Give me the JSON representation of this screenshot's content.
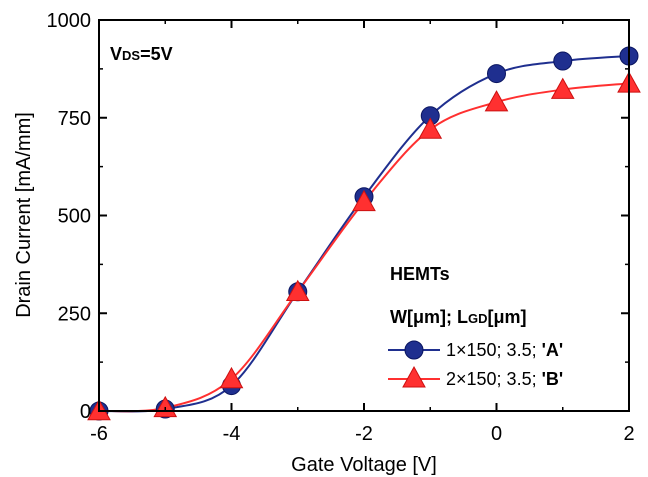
{
  "chart_data": {
    "type": "line",
    "x": [
      -6,
      -5,
      -4,
      -3,
      -2,
      -1,
      0,
      1,
      2
    ],
    "series": [
      {
        "name": "1×150; 3.5; 'A'",
        "name_parts": {
          "main": "1×150; 3.5; ",
          "bold": "'A'"
        },
        "values": [
          0,
          5,
          65,
          305,
          548,
          755,
          863,
          895,
          908
        ],
        "color": "#1f2f8f",
        "marker": "circle"
      },
      {
        "name": "2×150; 3.5; 'B'",
        "name_parts": {
          "main": "2×150; 3.5; ",
          "bold": "'B'"
        },
        "values": [
          0,
          8,
          82,
          305,
          535,
          720,
          790,
          822,
          838
        ],
        "color": "#ff3030",
        "marker": "triangle"
      }
    ],
    "xlabel": "Gate Voltage [V]",
    "ylabel": "Drain Current [mA/mm]",
    "xlim": [
      -6,
      2
    ],
    "ylim": [
      0,
      1000
    ],
    "xticks": [
      "-6",
      "-4",
      "-2",
      "0",
      "2"
    ],
    "yticks": [
      "0",
      "250",
      "500",
      "750",
      "1000"
    ],
    "grid": false,
    "legend_position": "bottom-right",
    "annotations": {
      "vds": {
        "main": "V",
        "sub": "DS",
        "rest": "=5V"
      },
      "device": "HEMTs",
      "legend_header": {
        "w": "W[μm]; L",
        "sub": "GD",
        "rest": "[μm]"
      }
    }
  }
}
